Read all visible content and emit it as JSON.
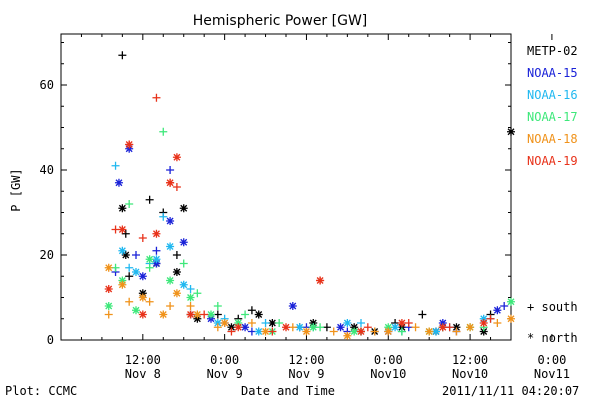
{
  "chart_data": {
    "type": "scatter",
    "title": "Hemispheric Power [GW]",
    "ylabel": "P [GW]",
    "xlabel": "Date and Time",
    "ylim": [
      0,
      72
    ],
    "yticks": [
      0,
      20,
      40,
      60
    ],
    "xlim": [
      0,
      66
    ],
    "xticks": [
      {
        "x": 12,
        "time": "12:00",
        "date": "Nov 8"
      },
      {
        "x": 24,
        "time": "0:00",
        "date": "Nov 9"
      },
      {
        "x": 36,
        "time": "12:00",
        "date": "Nov 9"
      },
      {
        "x": 48,
        "time": "0:00",
        "date": "Nov10"
      },
      {
        "x": 60,
        "time": "12:00",
        "date": "Nov10"
      },
      {
        "x": 72,
        "time": "0:00",
        "date": "Nov11"
      }
    ],
    "x_units": "hours since Nov 8 00:00 UTC",
    "grid": false,
    "legend_position": "right",
    "markers": {
      "south": "+",
      "north": "*"
    },
    "marker_legend": {
      "south": "south",
      "north": "north"
    },
    "series": [
      {
        "name": "METP-02",
        "color": "#000000",
        "south": [
          [
            9,
            67
          ],
          [
            9.5,
            25
          ],
          [
            10,
            15
          ],
          [
            13,
            33
          ],
          [
            15,
            30
          ],
          [
            17,
            20
          ],
          [
            19,
            6
          ],
          [
            23,
            6
          ],
          [
            26,
            5
          ],
          [
            28,
            7
          ],
          [
            35,
            3
          ],
          [
            39,
            3
          ],
          [
            44,
            2
          ],
          [
            49,
            4
          ],
          [
            53,
            6
          ],
          [
            56,
            3
          ],
          [
            63,
            6
          ],
          [
            67,
            14
          ],
          [
            70,
            17
          ],
          [
            72,
            16
          ],
          [
            74,
            10
          ]
        ],
        "north": [
          [
            9,
            31
          ],
          [
            9.5,
            20
          ],
          [
            12,
            11
          ],
          [
            14,
            18
          ],
          [
            17,
            16
          ],
          [
            18,
            31
          ],
          [
            20,
            5
          ],
          [
            25,
            3
          ],
          [
            29,
            6
          ],
          [
            31,
            4
          ],
          [
            37,
            4
          ],
          [
            43,
            3
          ],
          [
            46,
            2
          ],
          [
            50,
            3
          ],
          [
            55,
            2
          ],
          [
            58,
            3
          ],
          [
            62,
            2
          ],
          [
            66,
            49
          ],
          [
            68,
            13
          ],
          [
            71,
            11
          ],
          [
            73,
            8
          ]
        ]
      },
      {
        "name": "NOAA-15",
        "color": "#1a22d8",
        "south": [
          [
            8,
            16
          ],
          [
            11,
            20
          ],
          [
            14,
            21
          ],
          [
            16,
            40
          ],
          [
            24,
            4
          ],
          [
            28,
            2
          ],
          [
            36,
            3
          ],
          [
            42,
            2
          ],
          [
            51,
            3
          ],
          [
            58,
            2
          ],
          [
            65,
            8
          ],
          [
            70,
            10
          ],
          [
            74,
            12
          ]
        ],
        "north": [
          [
            8.5,
            37
          ],
          [
            10,
            45
          ],
          [
            12,
            15
          ],
          [
            14,
            18
          ],
          [
            16,
            28
          ],
          [
            18,
            23
          ],
          [
            22,
            5
          ],
          [
            27,
            3
          ],
          [
            34,
            8
          ],
          [
            41,
            3
          ],
          [
            48,
            2
          ],
          [
            56,
            4
          ],
          [
            64,
            7
          ],
          [
            69,
            13
          ],
          [
            74,
            11
          ]
        ]
      },
      {
        "name": "NOAA-16",
        "color": "#20b8f0",
        "south": [
          [
            8,
            41
          ],
          [
            10,
            17
          ],
          [
            13,
            18
          ],
          [
            15,
            29
          ],
          [
            19,
            12
          ],
          [
            24,
            5
          ],
          [
            30,
            4
          ],
          [
            37,
            3
          ],
          [
            44,
            4
          ],
          [
            50,
            2
          ],
          [
            57,
            3
          ],
          [
            63,
            5
          ],
          [
            69,
            19
          ],
          [
            73,
            9
          ]
        ],
        "north": [
          [
            9,
            21
          ],
          [
            11,
            16
          ],
          [
            14,
            19
          ],
          [
            16,
            22
          ],
          [
            18,
            13
          ],
          [
            23,
            4
          ],
          [
            29,
            2
          ],
          [
            35,
            3
          ],
          [
            42,
            4
          ],
          [
            49,
            3
          ],
          [
            55,
            2
          ],
          [
            62,
            5
          ],
          [
            68,
            15
          ],
          [
            73,
            7
          ]
        ]
      },
      {
        "name": "NOAA-17",
        "color": "#3de87a",
        "south": [
          [
            8,
            17
          ],
          [
            10,
            32
          ],
          [
            13,
            17
          ],
          [
            15,
            49
          ],
          [
            18,
            18
          ],
          [
            20,
            11
          ],
          [
            23,
            8
          ],
          [
            27,
            6
          ],
          [
            32,
            4
          ],
          [
            38,
            3
          ],
          [
            44,
            2
          ],
          [
            50,
            2
          ],
          [
            56,
            3
          ],
          [
            62,
            3
          ],
          [
            67,
            17
          ],
          [
            72,
            7
          ]
        ],
        "north": [
          [
            7,
            8
          ],
          [
            9,
            14
          ],
          [
            11,
            7
          ],
          [
            13,
            19
          ],
          [
            16,
            14
          ],
          [
            19,
            10
          ],
          [
            22,
            6
          ],
          [
            26,
            4
          ],
          [
            31,
            2
          ],
          [
            37,
            3
          ],
          [
            43,
            2
          ],
          [
            48,
            3
          ],
          [
            54,
            2
          ],
          [
            60,
            3
          ],
          [
            66,
            9
          ],
          [
            71,
            5
          ]
        ]
      },
      {
        "name": "NOAA-18",
        "color": "#f0921a",
        "south": [
          [
            7,
            6
          ],
          [
            10,
            9
          ],
          [
            13,
            9
          ],
          [
            16,
            8
          ],
          [
            19,
            8
          ],
          [
            23,
            3
          ],
          [
            28,
            4
          ],
          [
            34,
            3
          ],
          [
            40,
            2
          ],
          [
            46,
            2
          ],
          [
            52,
            3
          ],
          [
            58,
            2
          ],
          [
            64,
            4
          ],
          [
            70,
            6
          ],
          [
            74,
            3
          ]
        ],
        "north": [
          [
            7,
            17
          ],
          [
            9,
            13
          ],
          [
            12,
            10
          ],
          [
            15,
            6
          ],
          [
            17,
            11
          ],
          [
            20,
            6
          ],
          [
            24,
            4
          ],
          [
            30,
            2
          ],
          [
            36,
            2
          ],
          [
            42,
            1
          ],
          [
            48,
            2
          ],
          [
            54,
            2
          ],
          [
            60,
            3
          ],
          [
            66,
            5
          ],
          [
            72,
            5
          ]
        ]
      },
      {
        "name": "NOAA-19",
        "color": "#e8321a",
        "south": [
          [
            8,
            26
          ],
          [
            10,
            46
          ],
          [
            12,
            24
          ],
          [
            14,
            57
          ],
          [
            16,
            37
          ],
          [
            17,
            36
          ],
          [
            21,
            6
          ],
          [
            25,
            2
          ],
          [
            31,
            2
          ],
          [
            38,
            14
          ],
          [
            45,
            3
          ],
          [
            51,
            4
          ],
          [
            57,
            3
          ],
          [
            63,
            5
          ],
          [
            68,
            16
          ],
          [
            72,
            4
          ]
        ],
        "north": [
          [
            7,
            12
          ],
          [
            9,
            26
          ],
          [
            10,
            46
          ],
          [
            12,
            6
          ],
          [
            14,
            25
          ],
          [
            16,
            37
          ],
          [
            17,
            43
          ],
          [
            19,
            6
          ],
          [
            26,
            3
          ],
          [
            33,
            3
          ],
          [
            38,
            14
          ],
          [
            44,
            2
          ],
          [
            50,
            4
          ],
          [
            56,
            3
          ],
          [
            62,
            4
          ],
          [
            67,
            14
          ],
          [
            73,
            8
          ]
        ]
      }
    ]
  },
  "footer": {
    "left": "Plot: CCMC",
    "right": "2011/11/11 04:20:07"
  }
}
